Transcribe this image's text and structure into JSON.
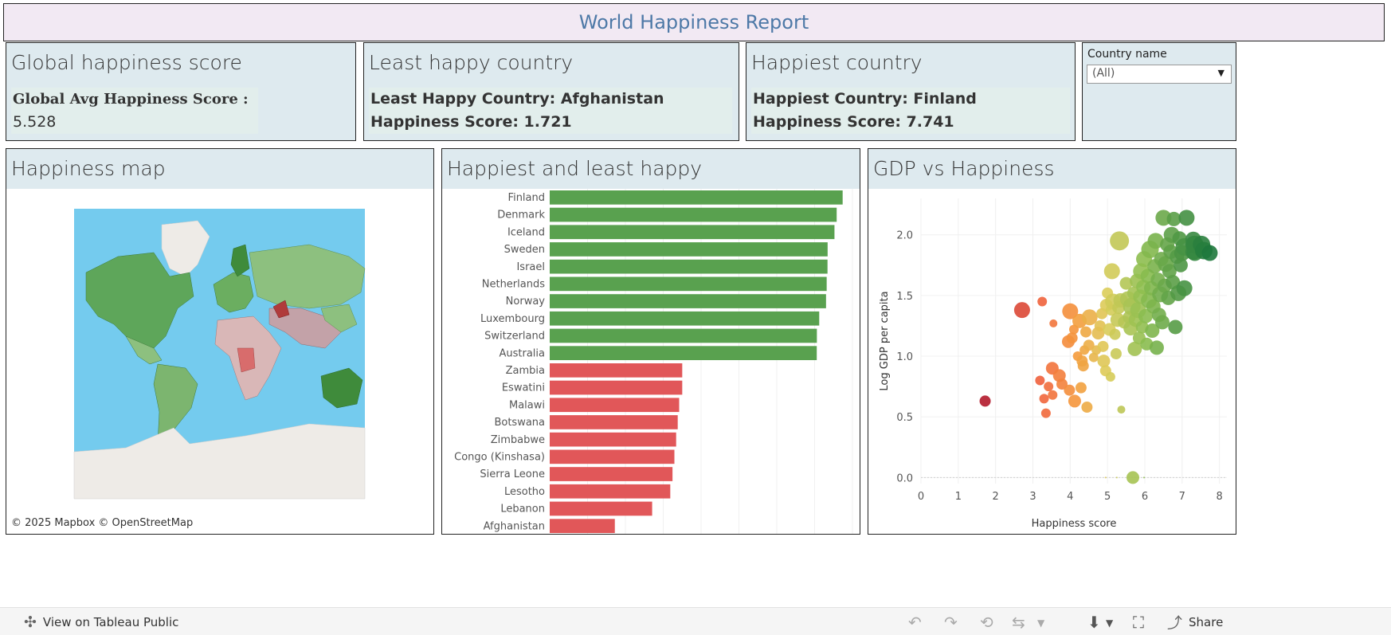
{
  "header": {
    "title": "World Happiness Report"
  },
  "kpis": {
    "global": {
      "title": "Global happiness score",
      "label": "Global Avg Happiness Score : ",
      "value": "5.528"
    },
    "least": {
      "title": "Least happy country",
      "line1": "Least Happy Country: Afghanistan",
      "line2": "Happiness Score: 1.721"
    },
    "happiest": {
      "title": "Happiest country",
      "line1": "Happiest Country: Finland",
      "line2": "Happiness Score: 7.741"
    }
  },
  "filter": {
    "label": "Country name",
    "value": "(All)"
  },
  "map": {
    "title": "Happiness map",
    "credit": "© 2025 Mapbox  © OpenStreetMap"
  },
  "bars": {
    "title": "Happiest and least happy"
  },
  "scatter": {
    "title": "GDP vs Happiness"
  },
  "colors": {
    "happy": "#59a14f",
    "unhappy": "#e15759",
    "panel": "#deeaef",
    "title": "#4e79a7"
  },
  "chart_data": [
    {
      "type": "bar",
      "orientation": "horizontal",
      "categories": [
        "Finland",
        "Denmark",
        "Iceland",
        "Sweden",
        "Israel",
        "Netherlands",
        "Norway",
        "Luxembourg",
        "Switzerland",
        "Australia",
        "Zambia",
        "Eswatini",
        "Malawi",
        "Botswana",
        "Zimbabwe",
        "Congo (Kinshasa)",
        "Sierra Leone",
        "Lesotho",
        "Lebanon",
        "Afghanistan"
      ],
      "values": [
        7.741,
        7.583,
        7.525,
        7.344,
        7.341,
        7.319,
        7.302,
        7.122,
        7.06,
        7.057,
        3.502,
        3.502,
        3.421,
        3.383,
        3.341,
        3.295,
        3.245,
        3.186,
        2.707,
        1.721
      ],
      "group": [
        "happiest",
        "happiest",
        "happiest",
        "happiest",
        "happiest",
        "happiest",
        "happiest",
        "happiest",
        "happiest",
        "happiest",
        "least",
        "least",
        "least",
        "least",
        "least",
        "least",
        "least",
        "least",
        "least",
        "least"
      ],
      "xlim": [
        0,
        8
      ]
    },
    {
      "type": "scatter",
      "xlabel": "Happiness score",
      "ylabel": "Log GDP per capita",
      "xlim": [
        0,
        8.2
      ],
      "ylim": [
        -0.05,
        2.3
      ],
      "xticks": [
        "0",
        "1",
        "2",
        "3",
        "4",
        "5",
        "6",
        "7",
        "8"
      ],
      "yticks": [
        "0.0",
        "0.5",
        "1.0",
        "1.5",
        "2.0"
      ],
      "points": [
        [
          1.72,
          0.63,
          7
        ],
        [
          2.71,
          1.38,
          10
        ],
        [
          3.25,
          1.45,
          6
        ],
        [
          3.19,
          0.8,
          6
        ],
        [
          3.3,
          0.65,
          6
        ],
        [
          3.35,
          0.53,
          6
        ],
        [
          3.42,
          0.75,
          6
        ],
        [
          3.52,
          0.9,
          8
        ],
        [
          3.53,
          0.68,
          6
        ],
        [
          3.55,
          1.27,
          5
        ],
        [
          3.71,
          0.84,
          8
        ],
        [
          3.78,
          0.77,
          7
        ],
        [
          3.98,
          0.72,
          7
        ],
        [
          3.95,
          1.12,
          8
        ],
        [
          4.0,
          1.37,
          10
        ],
        [
          4.05,
          1.15,
          7
        ],
        [
          4.1,
          1.22,
          6
        ],
        [
          4.12,
          0.63,
          8
        ],
        [
          4.2,
          1.0,
          6
        ],
        [
          4.25,
          1.29,
          9
        ],
        [
          4.29,
          0.74,
          7
        ],
        [
          4.32,
          0.96,
          7
        ],
        [
          4.35,
          0.92,
          7
        ],
        [
          4.38,
          1.05,
          6
        ],
        [
          4.42,
          1.2,
          7
        ],
        [
          4.45,
          0.58,
          7
        ],
        [
          4.5,
          1.09,
          7
        ],
        [
          4.52,
          1.32,
          10
        ],
        [
          4.63,
          0.99,
          6
        ],
        [
          4.7,
          1.05,
          6
        ],
        [
          4.75,
          1.19,
          8
        ],
        [
          4.8,
          1.25,
          7
        ],
        [
          4.85,
          1.35,
          7
        ],
        [
          4.88,
          1.08,
          7
        ],
        [
          4.9,
          0.96,
          8
        ],
        [
          4.95,
          0.88,
          7
        ],
        [
          4.97,
          1.42,
          8
        ],
        [
          5.0,
          1.52,
          7
        ],
        [
          5.05,
          1.22,
          8
        ],
        [
          5.08,
          0.83,
          6
        ],
        [
          5.1,
          1.38,
          7
        ],
        [
          5.12,
          1.7,
          10
        ],
        [
          5.15,
          1.45,
          10
        ],
        [
          5.2,
          1.18,
          7
        ],
        [
          5.23,
          1.02,
          7
        ],
        [
          5.27,
          1.3,
          9
        ],
        [
          5.3,
          1.4,
          8
        ],
        [
          5.32,
          1.95,
          12
        ],
        [
          5.35,
          1.46,
          9
        ],
        [
          5.37,
          0.56,
          5
        ],
        [
          5.45,
          1.28,
          8
        ],
        [
          5.5,
          1.6,
          8
        ],
        [
          5.55,
          1.47,
          10
        ],
        [
          5.58,
          1.32,
          8
        ],
        [
          5.62,
          1.23,
          9
        ],
        [
          5.65,
          1.41,
          11
        ],
        [
          5.68,
          0.0,
          8
        ],
        [
          5.7,
          1.52,
          8
        ],
        [
          5.73,
          1.06,
          9
        ],
        [
          5.76,
          1.3,
          9
        ],
        [
          5.79,
          1.62,
          9
        ],
        [
          5.82,
          1.38,
          10
        ],
        [
          5.85,
          1.15,
          8
        ],
        [
          5.88,
          1.49,
          9
        ],
        [
          5.9,
          1.7,
          10
        ],
        [
          5.93,
          1.24,
          8
        ],
        [
          5.96,
          1.57,
          9
        ],
        [
          5.98,
          1.8,
          10
        ],
        [
          6.02,
          1.33,
          9
        ],
        [
          6.05,
          1.1,
          8
        ],
        [
          6.08,
          1.66,
          9
        ],
        [
          6.11,
          1.46,
          10
        ],
        [
          6.14,
          1.88,
          11
        ],
        [
          6.17,
          1.56,
          9
        ],
        [
          6.2,
          1.21,
          9
        ],
        [
          6.23,
          1.41,
          9
        ],
        [
          6.26,
          1.74,
          9
        ],
        [
          6.29,
          1.95,
          10
        ],
        [
          6.32,
          1.07,
          9
        ],
        [
          6.35,
          1.63,
          9
        ],
        [
          6.38,
          1.34,
          9
        ],
        [
          6.41,
          1.51,
          10
        ],
        [
          6.44,
          1.8,
          9
        ],
        [
          6.47,
          1.28,
          9
        ],
        [
          6.5,
          2.14,
          10
        ],
        [
          6.53,
          1.58,
          9
        ],
        [
          6.56,
          1.76,
          10
        ],
        [
          6.6,
          1.92,
          9
        ],
        [
          6.63,
          1.48,
          9
        ],
        [
          6.66,
          1.7,
          9
        ],
        [
          6.69,
          1.86,
          9
        ],
        [
          6.72,
          2.0,
          10
        ],
        [
          6.75,
          1.61,
          9
        ],
        [
          6.78,
          2.13,
          9
        ],
        [
          6.82,
          1.24,
          9
        ],
        [
          6.86,
          1.82,
          9
        ],
        [
          6.9,
          1.52,
          10
        ],
        [
          6.93,
          1.97,
          9
        ],
        [
          6.96,
          1.75,
          9
        ],
        [
          7.0,
          1.85,
          10
        ],
        [
          7.06,
          1.9,
          11
        ],
        [
          7.06,
          1.56,
          10
        ],
        [
          7.12,
          2.14,
          10
        ],
        [
          7.3,
          1.86,
          10
        ],
        [
          7.3,
          1.96,
          10
        ],
        [
          7.32,
          1.92,
          11
        ],
        [
          7.34,
          1.92,
          11
        ],
        [
          7.34,
          1.85,
          10
        ],
        [
          7.52,
          1.92,
          11
        ],
        [
          7.58,
          1.87,
          11
        ],
        [
          7.74,
          1.85,
          10
        ],
        [
          4.95,
          0.0,
          1
        ],
        [
          5.25,
          0.0,
          1
        ],
        [
          5.98,
          0.0,
          1
        ],
        [
          3.21,
          0.77,
          1
        ]
      ]
    }
  ]
}
